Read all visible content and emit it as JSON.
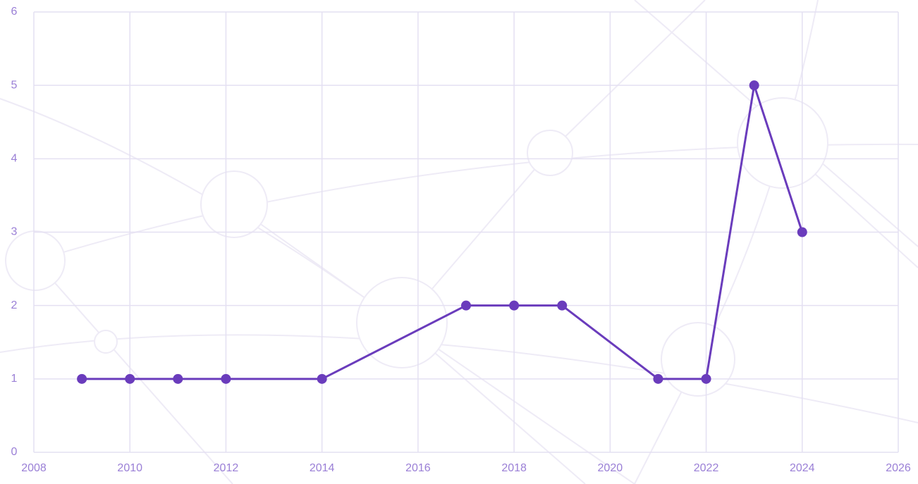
{
  "chart_data": {
    "type": "line",
    "x": [
      2009,
      2010,
      2011,
      2012,
      2014,
      2017,
      2018,
      2019,
      2021,
      2022,
      2023,
      2024
    ],
    "values": [
      1,
      1,
      1,
      1,
      1,
      2,
      2,
      2,
      1,
      1,
      5,
      3
    ],
    "color": "#6a3cbc",
    "xlim": [
      2008,
      2026
    ],
    "xticks": [
      2008,
      2010,
      2012,
      2014,
      2016,
      2018,
      2020,
      2022,
      2024,
      2026
    ],
    "ylim": [
      0,
      6
    ],
    "yticks": [
      0,
      1,
      2,
      3,
      4,
      5,
      6
    ],
    "grid": true
  }
}
